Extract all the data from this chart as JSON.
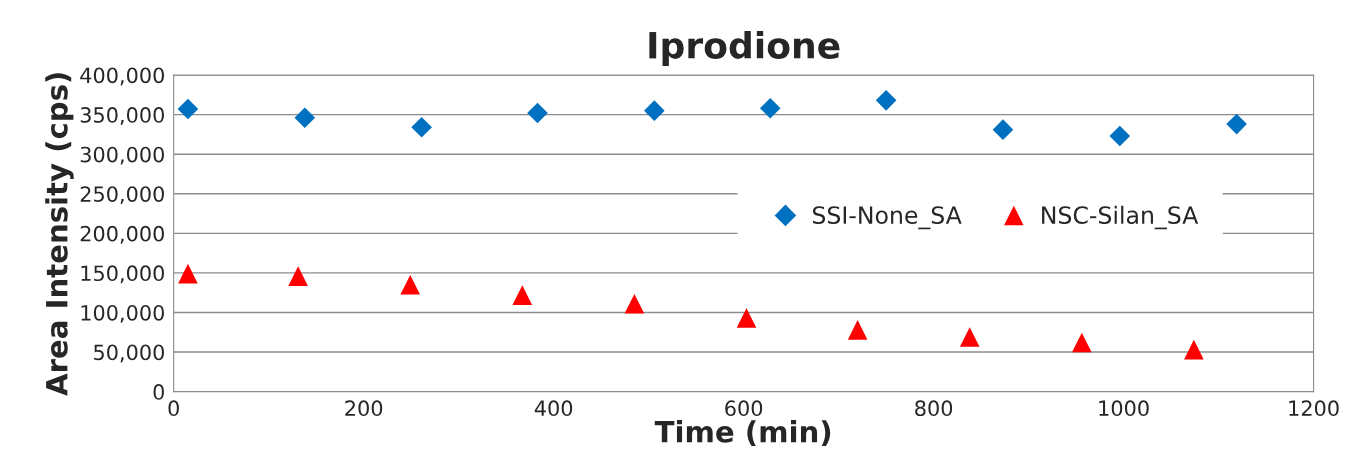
{
  "chart_data": {
    "type": "scatter",
    "title": "Iprodione",
    "xlabel": "Time (min)",
    "ylabel": "Area Intensity (cps)",
    "xlim": [
      0,
      1200
    ],
    "xticks": [
      0,
      200,
      400,
      600,
      800,
      1000,
      1200
    ],
    "ylim": [
      0,
      400000
    ],
    "yticks": [
      {
        "value": 0,
        "label": "0"
      },
      {
        "value": 50000,
        "label": "50,000"
      },
      {
        "value": 100000,
        "label": "100,000"
      },
      {
        "value": 150000,
        "label": "150,000"
      },
      {
        "value": 200000,
        "label": "200,000"
      },
      {
        "value": 250000,
        "label": "250,000"
      },
      {
        "value": 300000,
        "label": "300,000"
      },
      {
        "value": 350000,
        "label": "350,000"
      },
      {
        "value": 400000,
        "label": "400,000"
      }
    ],
    "grid": "y",
    "legend": "right",
    "series": [
      {
        "name": "SSI-None_SA",
        "color": "#0070c0",
        "marker": "diamond",
        "x": [
          15,
          138,
          261,
          383,
          506,
          628,
          750,
          873,
          996,
          1119
        ],
        "values": [
          357000,
          346000,
          334000,
          352000,
          355000,
          358000,
          368000,
          331000,
          323000,
          338000
        ]
      },
      {
        "name": "NSC-Silan_SA",
        "color": "#ff0000",
        "marker": "triangle",
        "x": [
          15,
          131,
          249,
          367,
          485,
          603,
          720,
          838,
          956,
          1074
        ],
        "values": [
          149000,
          146000,
          135000,
          122000,
          111000,
          93000,
          78000,
          69000,
          62000,
          53000
        ]
      }
    ]
  }
}
